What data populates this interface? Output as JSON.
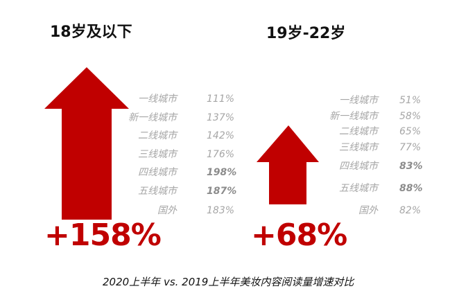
{
  "colors": {
    "arrow": "#c00000",
    "bigText": "#c00000",
    "rowText": "#a6a6a6"
  },
  "caption": "2020上半年 vs. 2019上半年美妆内容阅读量增速对比",
  "chart_data": [
    {
      "type": "bar",
      "title": "18岁及以下",
      "total_growth": "+158%",
      "categories": [
        "一线城市",
        "新一线城市",
        "二线城市",
        "三线城市",
        "四线城市",
        "五线城市",
        "国外"
      ],
      "values": [
        111,
        137,
        142,
        176,
        198,
        187,
        183
      ],
      "labels": [
        "111%",
        "137%",
        "142%",
        "176%",
        "198%",
        "187%",
        "183%"
      ],
      "bold_categories": [
        "四线城市",
        "五线城市"
      ]
    },
    {
      "type": "bar",
      "title": "19岁-22岁",
      "total_growth": "+68%",
      "categories": [
        "一线城市",
        "新一线城市",
        "二线城市",
        "三线城市",
        "四线城市",
        "五线城市",
        "国外"
      ],
      "values": [
        51,
        58,
        65,
        77,
        83,
        88,
        82
      ],
      "labels": [
        "51%",
        "58%",
        "65%",
        "77%",
        "83%",
        "88%",
        "82%"
      ],
      "bold_categories": [
        "四线城市",
        "五线城市"
      ]
    }
  ]
}
